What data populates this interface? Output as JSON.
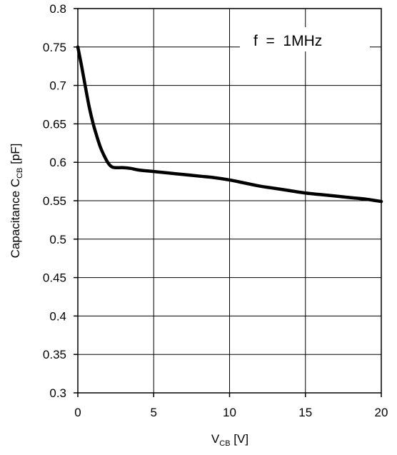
{
  "chart_data": {
    "type": "line",
    "title": "",
    "annotation": "f  =  1MHz",
    "xlabel": {
      "main": "V",
      "sub": "CB",
      "unit": " [V]"
    },
    "ylabel": {
      "main": "Capacitance C",
      "sub": "CB",
      "unit": " [pF]"
    },
    "xlim": [
      0,
      20
    ],
    "ylim": [
      0.3,
      0.8
    ],
    "x_ticks": [
      0,
      5,
      10,
      15,
      20
    ],
    "x_tick_labels": [
      "0",
      "5",
      "10",
      "15",
      "20"
    ],
    "y_ticks": [
      0.3,
      0.35,
      0.4,
      0.45,
      0.5,
      0.55,
      0.6,
      0.65,
      0.7,
      0.75,
      0.8
    ],
    "y_tick_labels": [
      "0.3",
      "0.35",
      "0.4",
      "0.45",
      "0.5",
      "0.55",
      "0.6",
      "0.65",
      "0.7",
      "0.75",
      "0.8"
    ],
    "grid": true,
    "legend": "none",
    "series": [
      {
        "x": [
          0,
          0.25,
          0.5,
          0.75,
          1.0,
          1.25,
          1.5,
          1.75,
          2.0,
          2.25,
          2.5,
          3,
          3.5,
          4,
          5,
          6,
          7,
          8,
          9,
          10,
          11,
          12,
          13,
          14,
          15,
          16,
          17,
          18,
          19,
          20
        ],
        "y": [
          0.75,
          0.725,
          0.698,
          0.672,
          0.651,
          0.634,
          0.619,
          0.608,
          0.599,
          0.594,
          0.593,
          0.593,
          0.592,
          0.59,
          0.588,
          0.586,
          0.584,
          0.582,
          0.58,
          0.577,
          0.573,
          0.569,
          0.566,
          0.563,
          0.56,
          0.558,
          0.556,
          0.554,
          0.552,
          0.549
        ],
        "color": "#000000"
      }
    ]
  }
}
